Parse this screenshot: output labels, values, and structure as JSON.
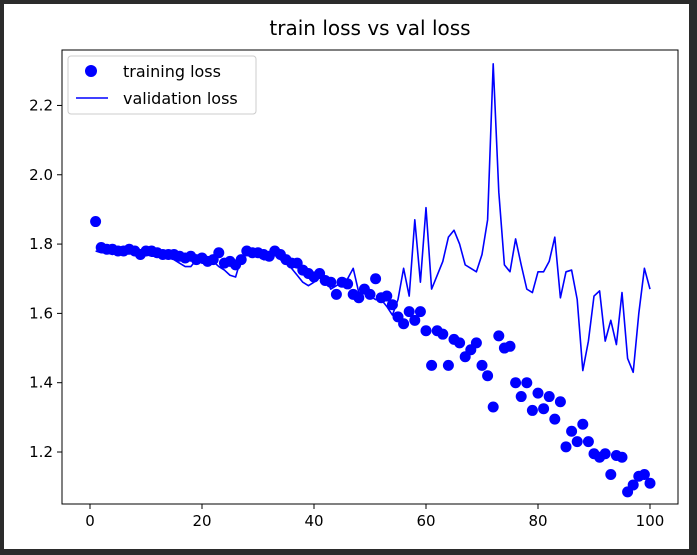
{
  "chart_data": {
    "type": "line",
    "title": "train loss vs val loss",
    "xlabel": "",
    "ylabel": "",
    "xlim": [
      -5,
      105
    ],
    "ylim": [
      1.05,
      2.36
    ],
    "xticks": [
      0,
      20,
      40,
      60,
      80,
      100
    ],
    "yticks": [
      1.2,
      1.4,
      1.6,
      1.8,
      2.0,
      2.2
    ],
    "ytick_labels": [
      "1.2",
      "1.4",
      "1.6",
      "1.8",
      "2.0",
      "2.2"
    ],
    "grid": false,
    "legend_position": "top-left",
    "series": [
      {
        "name": "training loss",
        "style": "markers",
        "color": "#0000ff",
        "x": [
          1,
          2,
          3,
          4,
          5,
          6,
          7,
          8,
          9,
          10,
          11,
          12,
          13,
          14,
          15,
          16,
          17,
          18,
          19,
          20,
          21,
          22,
          23,
          24,
          25,
          26,
          27,
          28,
          29,
          30,
          31,
          32,
          33,
          34,
          35,
          36,
          37,
          38,
          39,
          40,
          41,
          42,
          43,
          44,
          45,
          46,
          47,
          48,
          49,
          50,
          51,
          52,
          53,
          54,
          55,
          56,
          57,
          58,
          59,
          60,
          61,
          62,
          63,
          64,
          65,
          66,
          67,
          68,
          69,
          70,
          71,
          72,
          73,
          74,
          75,
          76,
          77,
          78,
          79,
          80,
          81,
          82,
          83,
          84,
          85,
          86,
          87,
          88,
          89,
          90,
          91,
          92,
          93,
          94,
          95,
          96,
          97,
          98,
          99,
          100
        ],
        "y": [
          1.865,
          1.79,
          1.785,
          1.785,
          1.78,
          1.78,
          1.785,
          1.78,
          1.77,
          1.78,
          1.78,
          1.775,
          1.77,
          1.77,
          1.77,
          1.765,
          1.76,
          1.765,
          1.755,
          1.76,
          1.75,
          1.755,
          1.775,
          1.745,
          1.75,
          1.74,
          1.755,
          1.78,
          1.775,
          1.775,
          1.77,
          1.765,
          1.78,
          1.77,
          1.755,
          1.745,
          1.745,
          1.725,
          1.715,
          1.705,
          1.715,
          1.695,
          1.69,
          1.655,
          1.69,
          1.685,
          1.655,
          1.645,
          1.67,
          1.655,
          1.7,
          1.645,
          1.65,
          1.625,
          1.59,
          1.57,
          1.605,
          1.58,
          1.605,
          1.55,
          1.45,
          1.55,
          1.54,
          1.45,
          1.525,
          1.515,
          1.475,
          1.495,
          1.515,
          1.45,
          1.42,
          1.33,
          1.535,
          1.5,
          1.505,
          1.4,
          1.36,
          1.4,
          1.32,
          1.37,
          1.325,
          1.36,
          1.295,
          1.345,
          1.215,
          1.26,
          1.23,
          1.28,
          1.23,
          1.195,
          1.185,
          1.195,
          1.135,
          1.19,
          1.185,
          1.085,
          1.105,
          1.13,
          1.135,
          1.11
        ]
      },
      {
        "name": "validation loss",
        "style": "line",
        "color": "#0000ff",
        "x": [
          1,
          2,
          3,
          4,
          5,
          6,
          7,
          8,
          9,
          10,
          11,
          12,
          13,
          14,
          15,
          16,
          17,
          18,
          19,
          20,
          21,
          22,
          23,
          24,
          25,
          26,
          27,
          28,
          29,
          30,
          31,
          32,
          33,
          34,
          35,
          36,
          37,
          38,
          39,
          40,
          41,
          42,
          43,
          44,
          45,
          46,
          47,
          48,
          49,
          50,
          51,
          52,
          53,
          54,
          55,
          56,
          57,
          58,
          59,
          60,
          61,
          62,
          63,
          64,
          65,
          66,
          67,
          68,
          69,
          70,
          71,
          72,
          73,
          74,
          75,
          76,
          77,
          78,
          79,
          80,
          81,
          82,
          83,
          84,
          85,
          86,
          87,
          88,
          89,
          90,
          91,
          92,
          93,
          94,
          95,
          96,
          97,
          98,
          99,
          100
        ],
        "y": [
          1.78,
          1.775,
          1.775,
          1.77,
          1.775,
          1.77,
          1.775,
          1.77,
          1.775,
          1.77,
          1.765,
          1.765,
          1.77,
          1.76,
          1.755,
          1.745,
          1.735,
          1.735,
          1.755,
          1.745,
          1.745,
          1.75,
          1.735,
          1.725,
          1.71,
          1.705,
          1.76,
          1.77,
          1.765,
          1.765,
          1.755,
          1.755,
          1.77,
          1.755,
          1.745,
          1.73,
          1.71,
          1.69,
          1.68,
          1.69,
          1.715,
          1.705,
          1.67,
          1.68,
          1.69,
          1.7,
          1.73,
          1.66,
          1.665,
          1.65,
          1.64,
          1.64,
          1.62,
          1.595,
          1.64,
          1.73,
          1.65,
          1.87,
          1.69,
          1.905,
          1.67,
          1.71,
          1.75,
          1.82,
          1.84,
          1.8,
          1.74,
          1.73,
          1.72,
          1.77,
          1.87,
          2.32,
          1.95,
          1.74,
          1.72,
          1.815,
          1.74,
          1.67,
          1.66,
          1.72,
          1.72,
          1.75,
          1.82,
          1.645,
          1.72,
          1.725,
          1.64,
          1.435,
          1.52,
          1.65,
          1.665,
          1.52,
          1.58,
          1.51,
          1.66,
          1.47,
          1.43,
          1.6,
          1.73,
          1.67
        ]
      }
    ]
  }
}
